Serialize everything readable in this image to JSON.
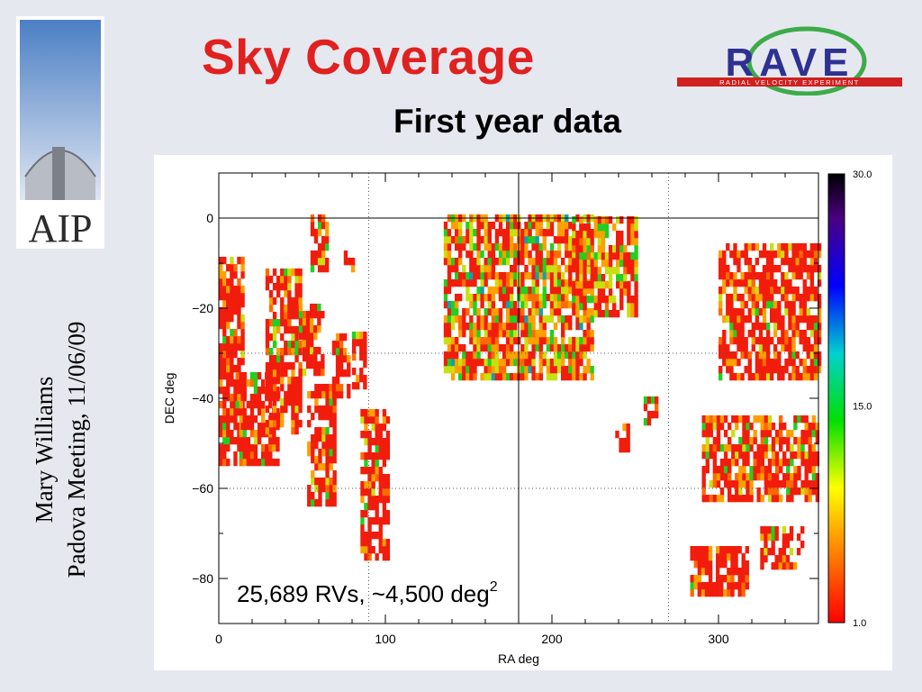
{
  "slide": {
    "title": "Sky Coverage",
    "subtitle": "First year data",
    "author": "Mary Williams",
    "meeting": "Padova Meeting, 11/06/09",
    "annotation_text": "25,689 RVs, ~4,500 deg",
    "annotation_sup": "2",
    "logo_left_text": "AIP",
    "logo_right_text": "RAVE",
    "logo_right_subtext": "RADIAL VELOCITY EXPERIMENT"
  },
  "colors": {
    "title": "#e0211f",
    "background": "#e6e8ef"
  },
  "chart_data": {
    "type": "heatmap",
    "xlabel": "RA deg",
    "ylabel": "DEC deg",
    "xlim": [
      0,
      360
    ],
    "ylim": [
      -90,
      10
    ],
    "xticks": [
      0,
      100,
      200,
      300
    ],
    "yticks": [
      0,
      -20,
      -40,
      -60,
      -80
    ],
    "dotted_grid_x": [
      90,
      270
    ],
    "dotted_grid_y": [
      -30,
      -60
    ],
    "solid_lines": {
      "x": 180,
      "y": 0
    },
    "colorbar": {
      "min": 1.0,
      "mid": 15.0,
      "max": 30.0,
      "labels": [
        "30.0",
        "15.0",
        "1.0"
      ]
    },
    "regions": [
      {
        "ra": [
          0,
          15
        ],
        "dec": [
          -55,
          -10
        ],
        "intensity": 0.1
      },
      {
        "ra": [
          10,
          35
        ],
        "dec": [
          -55,
          -35
        ],
        "intensity": 0.1
      },
      {
        "ra": [
          28,
          50
        ],
        "dec": [
          -48,
          -12
        ],
        "intensity": 0.12
      },
      {
        "ra": [
          48,
          62
        ],
        "dec": [
          -35,
          -20
        ],
        "intensity": 0.1
      },
      {
        "ra": [
          55,
          65
        ],
        "dec": [
          -12,
          0
        ],
        "intensity": 0.15
      },
      {
        "ra": [
          53,
          70
        ],
        "dec": [
          -64,
          -38
        ],
        "intensity": 0.1
      },
      {
        "ra": [
          68,
          78
        ],
        "dec": [
          -40,
          -26
        ],
        "intensity": 0.1
      },
      {
        "ra": [
          75,
          80
        ],
        "dec": [
          -12,
          -8
        ],
        "intensity": 0.08
      },
      {
        "ra": [
          80,
          88
        ],
        "dec": [
          -38,
          -26
        ],
        "intensity": 0.1
      },
      {
        "ra": [
          85,
          102
        ],
        "dec": [
          -76,
          -44
        ],
        "intensity": 0.08
      },
      {
        "ra": [
          135,
          225
        ],
        "dec": [
          -36,
          0
        ],
        "intensity": 0.35
      },
      {
        "ra": [
          212,
          250
        ],
        "dec": [
          -22,
          0
        ],
        "intensity": 0.3
      },
      {
        "ra": [
          238,
          245
        ],
        "dec": [
          -52,
          -47
        ],
        "intensity": 0.08
      },
      {
        "ra": [
          255,
          262
        ],
        "dec": [
          -46,
          -41
        ],
        "intensity": 0.08
      },
      {
        "ra": [
          300,
          360
        ],
        "dec": [
          -36,
          -6
        ],
        "intensity": 0.1
      },
      {
        "ra": [
          290,
          360
        ],
        "dec": [
          -63,
          -45
        ],
        "intensity": 0.15
      },
      {
        "ra": [
          283,
          318
        ],
        "dec": [
          -84,
          -74
        ],
        "intensity": 0.08
      },
      {
        "ra": [
          325,
          350
        ],
        "dec": [
          -78,
          -70
        ],
        "intensity": 0.08
      }
    ]
  }
}
